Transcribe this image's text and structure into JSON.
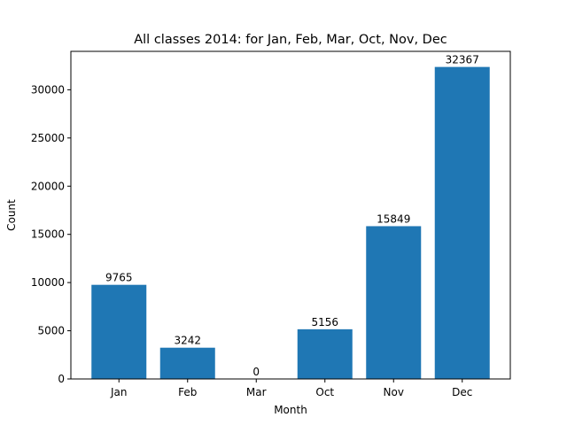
{
  "chart_data": {
    "type": "bar",
    "title": "All classes 2014: for Jan, Feb, Mar, Oct, Nov, Dec",
    "xlabel": "Month",
    "ylabel": "Count",
    "categories": [
      "Jan",
      "Feb",
      "Mar",
      "Oct",
      "Nov",
      "Dec"
    ],
    "values": [
      9765,
      3242,
      0,
      5156,
      15849,
      32367
    ],
    "ylim": [
      0,
      33985
    ],
    "yticks": [
      0,
      5000,
      10000,
      15000,
      20000,
      25000,
      30000
    ],
    "grid": false,
    "bar_color": "#1f77b4"
  }
}
